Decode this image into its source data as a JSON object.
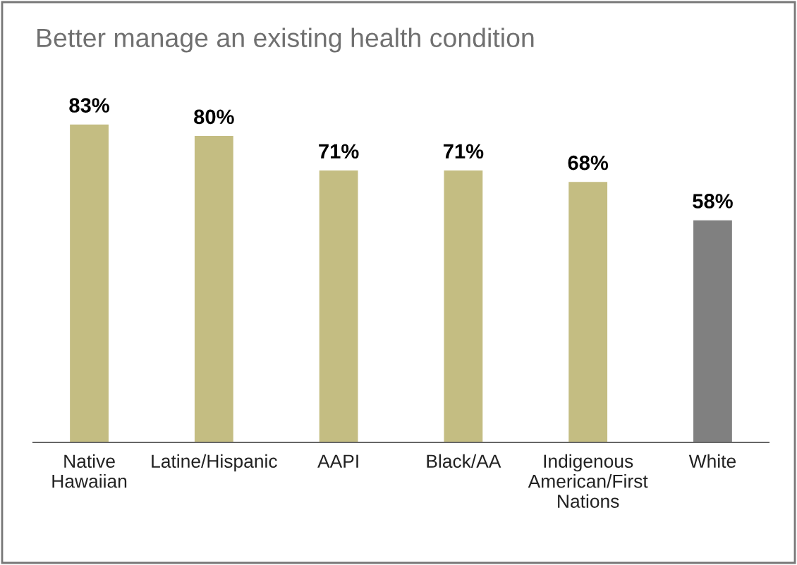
{
  "chart_data": {
    "type": "bar",
    "title": "Better manage an existing health condition",
    "categories": [
      "Native\nHawaiian",
      "Latine/Hispanic",
      "AAPI",
      "Black/AA",
      "Indigenous\nAmerican/First\nNations",
      "White"
    ],
    "values": [
      83,
      80,
      71,
      71,
      68,
      58
    ],
    "colors": [
      "#c4bd82",
      "#c4bd82",
      "#c4bd82",
      "#c4bd82",
      "#c4bd82",
      "#808080"
    ],
    "value_labels": [
      "83%",
      "80%",
      "71%",
      "71%",
      "68%",
      "58%"
    ],
    "grid": false,
    "legend": false
  }
}
